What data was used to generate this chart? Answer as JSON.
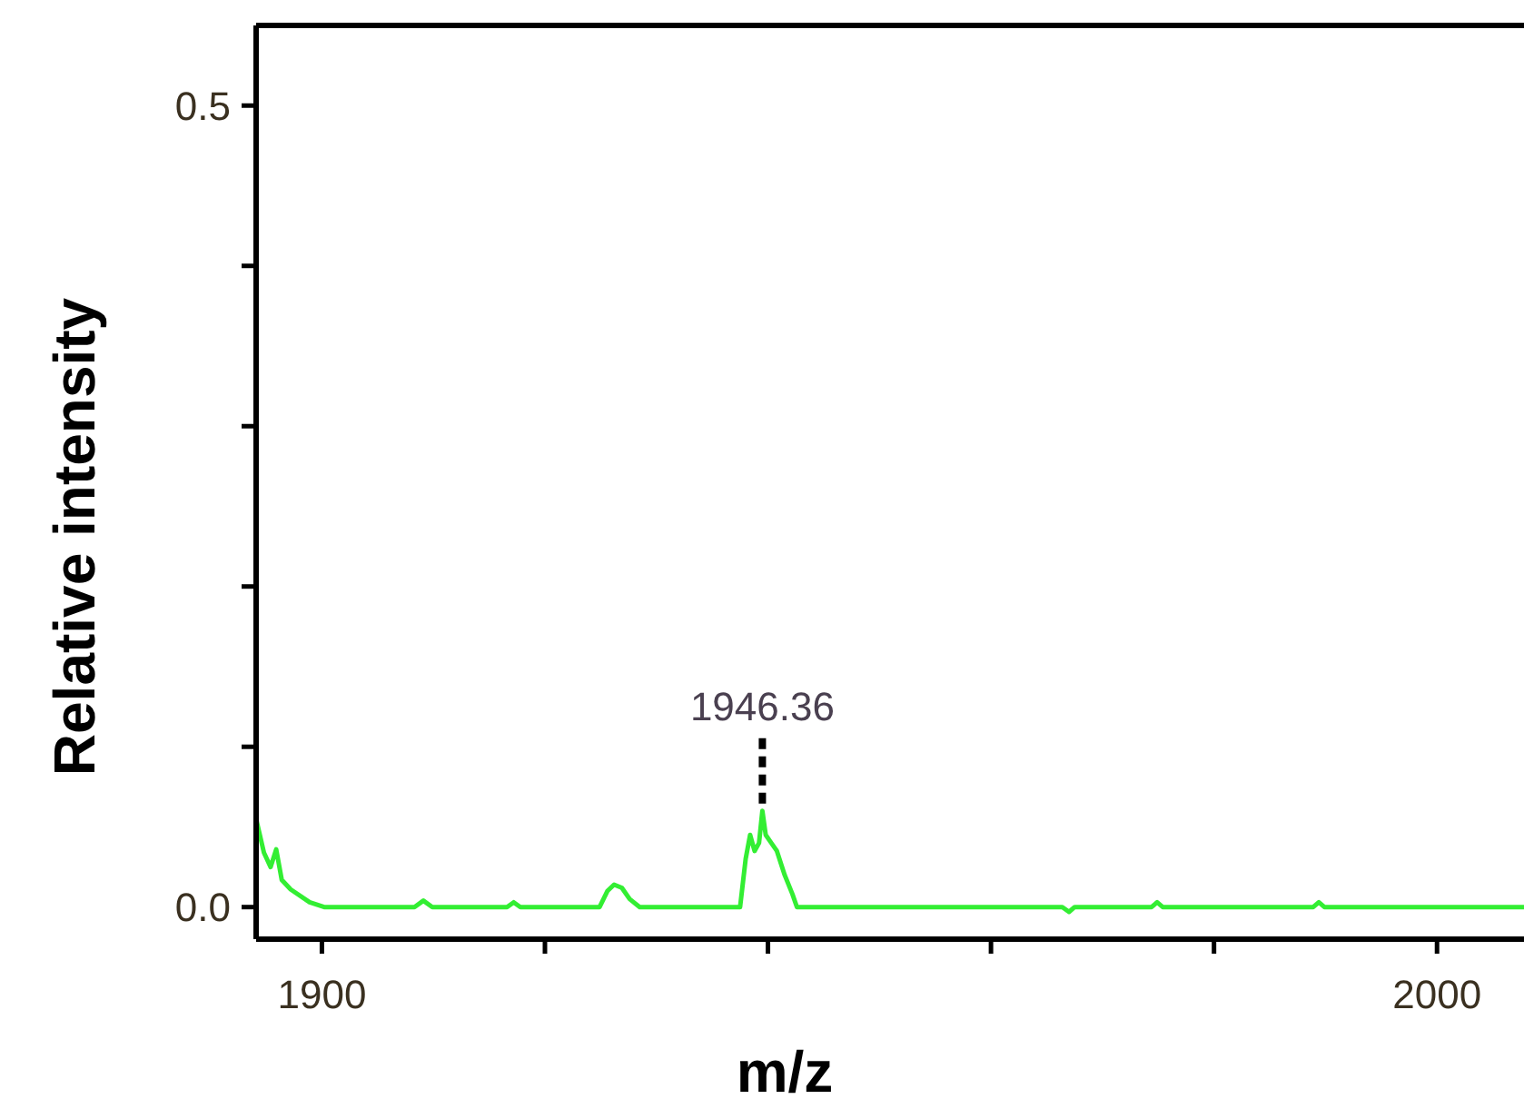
{
  "chart_data": {
    "type": "line",
    "xlabel": "m/z",
    "ylabel": "Relative intensity",
    "xlim": [
      1894.1,
      2007.8
    ],
    "ylim": [
      -0.02,
      0.55
    ],
    "xticks": [
      1900,
      {
        "value": 1920,
        "label": null
      },
      {
        "value": 1940,
        "label": null
      },
      {
        "value": 1960,
        "label": null
      },
      {
        "value": 1980,
        "label": null
      },
      2000
    ],
    "yticks": [
      {
        "value": 0,
        "label": "0.0"
      },
      {
        "value": 0.1,
        "label": null
      },
      {
        "value": 0.2,
        "label": null
      },
      {
        "value": 0.3,
        "label": null
      },
      {
        "value": 0.4,
        "label": null
      },
      {
        "value": 0.5,
        "label": "0.5"
      }
    ],
    "annotations": [
      {
        "text": "1946.36",
        "x": 1939.5,
        "y": 0.06
      }
    ],
    "grid": false,
    "marker": "none",
    "line_style": "solid",
    "series": [
      {
        "color": "#33ee33",
        "x": [
          1894.1,
          1894.8,
          1895.4,
          1895.9,
          1896.4,
          1897.2,
          1898.9,
          1900.2,
          1908.3,
          1909.1,
          1909.9,
          1916.6,
          1917.2,
          1917.8,
          1924.9,
          1925.6,
          1926.2,
          1926.9,
          1927.6,
          1928.5,
          1937.5,
          1938.0,
          1938.4,
          1938.8,
          1939.2,
          1939.5,
          1939.8,
          1940.3,
          1940.8,
          1941.5,
          1942.2,
          1942.6,
          1966.4,
          1967.0,
          1967.5,
          1974.4,
          1974.9,
          1975.4,
          1988.9,
          1989.4,
          1989.9,
          2007.8
        ],
        "values": [
          0.055,
          0.034,
          0.025,
          0.036,
          0.017,
          0.011,
          0.003,
          0,
          0,
          0.004,
          0,
          0,
          0.003,
          0,
          0,
          0.01,
          0.014,
          0.012,
          0.005,
          0,
          0,
          0.03,
          0.045,
          0.035,
          0.04,
          0.06,
          0.045,
          0.04,
          0.035,
          0.02,
          0.008,
          0,
          0,
          -0.003,
          0,
          0,
          0.003,
          0,
          0,
          0.003,
          0,
          0
        ]
      }
    ]
  }
}
